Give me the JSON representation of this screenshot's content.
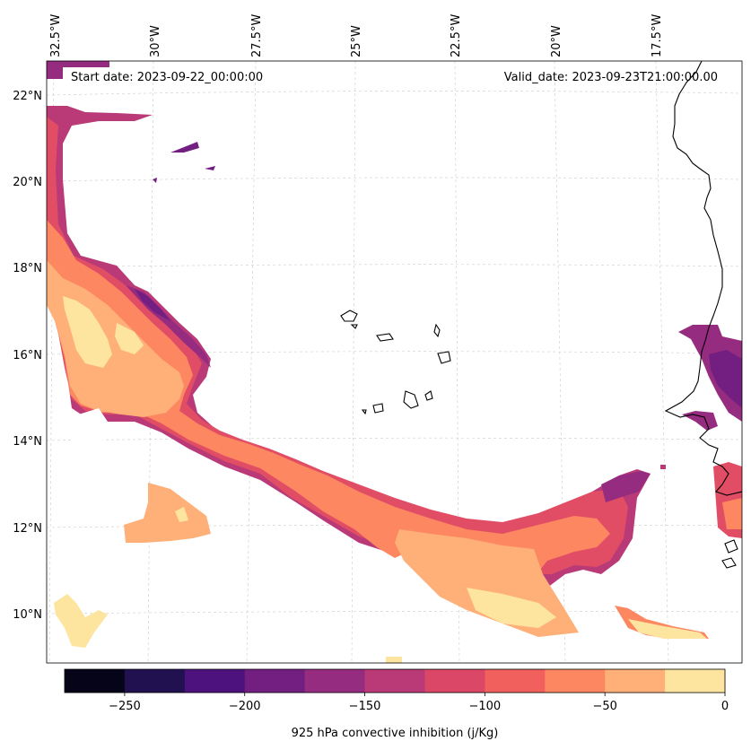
{
  "map": {
    "start_date": "Start date: 2023-09-22_00:00:00",
    "valid_date": "Valid_date: 2023-09-23T21:00:00.00",
    "lon_labels": [
      "32.5°W",
      "30°W",
      "27.5°W",
      "25°W",
      "22.5°W",
      "20°W",
      "17.5°W"
    ],
    "lat_labels": [
      "22°N",
      "20°N",
      "18°N",
      "16°N",
      "14°N",
      "12°N",
      "10°N"
    ],
    "gridlines": true
  },
  "colorbar": {
    "label": "925 hPa convective inhibition (j/Kg)",
    "tick_labels": [
      "−250",
      "−200",
      "−150",
      "−100",
      "−50",
      "0"
    ],
    "range": [
      -275,
      0
    ],
    "step": 25,
    "colors": [
      "#050418",
      "#221150",
      "#4d127d",
      "#721f81",
      "#962c80",
      "#b93a76",
      "#db4766",
      "#f1605d",
      "#fc8761",
      "#feb078",
      "#fde5a0"
    ]
  }
}
